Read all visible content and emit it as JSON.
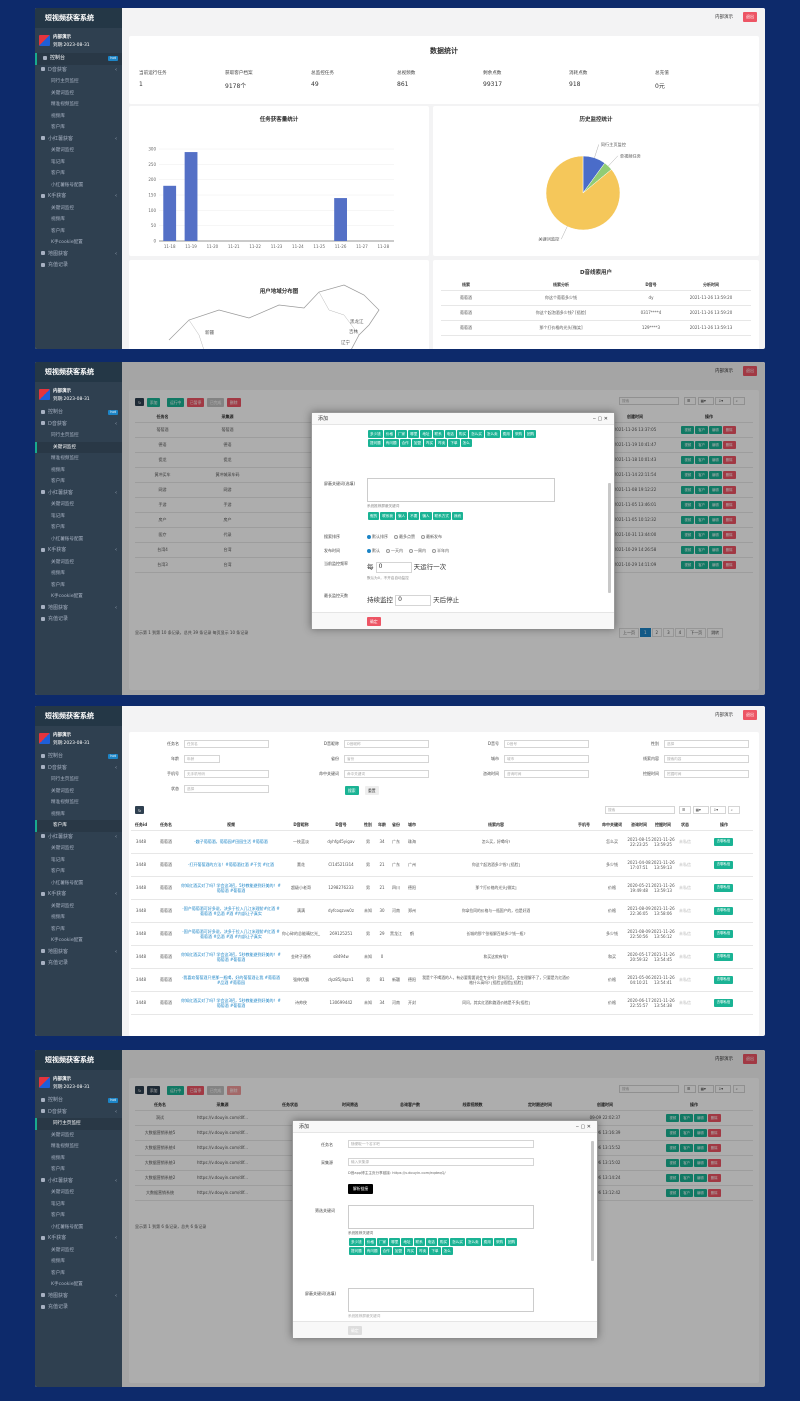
{
  "app": {
    "title": "短视频获客系统",
    "user": "内部演示",
    "expire": "到期:2023-08-31",
    "logout": "退出",
    "topuser": "内部演示"
  },
  "menu": [
    {
      "label": "控制台",
      "badge": "hot",
      "sub": false
    },
    {
      "label": "D音获客",
      "arrow": "‹",
      "sub": false
    },
    {
      "label": "同行主页监控",
      "sub": true
    },
    {
      "label": "关键词监控",
      "sub": true
    },
    {
      "label": "精准视频监控",
      "sub": true
    },
    {
      "label": "视频库",
      "sub": true
    },
    {
      "label": "客户库",
      "sub": true
    },
    {
      "label": "小红薯获客",
      "arrow": "‹",
      "sub": false
    },
    {
      "label": "关键词监控",
      "sub": true
    },
    {
      "label": "笔记库",
      "sub": true
    },
    {
      "label": "客户库",
      "sub": true
    },
    {
      "label": "小红薯账号配置",
      "sub": true
    },
    {
      "label": "K手获客",
      "arrow": "‹",
      "sub": false
    },
    {
      "label": "关键词监控",
      "sub": true
    },
    {
      "label": "视频库",
      "sub": true
    },
    {
      "label": "客户库",
      "sub": true
    },
    {
      "label": "K手cookie配置",
      "sub": true
    },
    {
      "label": "地图获客",
      "arrow": "‹",
      "sub": false
    },
    {
      "label": "充值记录",
      "sub": false
    }
  ],
  "p1": {
    "title": "数据统计",
    "stats": [
      {
        "label": "当前运行任务",
        "value": "1"
      },
      {
        "label": "获取客户档案",
        "value": "9178个"
      },
      {
        "label": "总监控任务",
        "value": "49"
      },
      {
        "label": "总视频数",
        "value": "861"
      },
      {
        "label": "剩余点数",
        "value": "99317"
      },
      {
        "label": "消耗点数",
        "value": "918"
      },
      {
        "label": "总充值",
        "value": "0元"
      }
    ],
    "bar_title": "任务获客量统计",
    "pie_title": "历史监控统计",
    "map_title": "用户地域分布图",
    "map_labels": [
      "黑龙江",
      "吉林",
      "辽宁",
      "新疆"
    ],
    "list_title": "D音线索用户",
    "list_headers": [
      "线索",
      "线索分析",
      "D音号",
      "分析时间"
    ],
    "list_rows": [
      {
        "a": "葡萄酒",
        "b": "你这个葡萄多少钱",
        "c": "dy",
        "d": "2021-11-26 13:59:20"
      },
      {
        "a": "葡萄酒",
        "b": "你这个起泡酒多少钱? [捂脸]",
        "c": "0317****4",
        "d": "2021-11-26 13:59:20"
      },
      {
        "a": "葡萄酒",
        "b": "那个打价格的光头[微笑]",
        "c": "129****3",
        "d": "2021-11-26 13:59:13"
      }
    ]
  },
  "chart_data": [
    {
      "type": "bar",
      "title": "任务获客量统计",
      "categories": [
        "11-18",
        "11-19",
        "11-20",
        "11-21",
        "11-22",
        "11-23",
        "11-24",
        "11-25",
        "11-26",
        "11-27",
        "11-28"
      ],
      "values": [
        180,
        290,
        0,
        0,
        0,
        0,
        0,
        0,
        140,
        0,
        0
      ],
      "ylim": [
        0,
        300
      ],
      "yticks": [
        0,
        50,
        100,
        150,
        200,
        250,
        300
      ]
    },
    {
      "type": "pie",
      "title": "历史监控统计",
      "series": [
        {
          "name": "同行主页监控",
          "value": 10
        },
        {
          "name": "单视频任务",
          "value": 4
        },
        {
          "name": "关键词监控",
          "value": 86
        }
      ],
      "colors": [
        "#4a6cc9",
        "#91cc75",
        "#f5c75a"
      ]
    }
  ],
  "p2": {
    "toolbar": [
      "添加",
      "运行中",
      "已暂停",
      "已完成",
      "删除"
    ],
    "search": "搜索",
    "headers": [
      "任务名",
      "采集源",
      "",
      "",
      "",
      "",
      "",
      "",
      "",
      "创建时间",
      "操作"
    ],
    "rows": [
      {
        "name": "葡萄酒",
        "src": "葡萄酒",
        "time": "2021-11-26 13:37:05"
      },
      {
        "name": "德语",
        "src": "德语",
        "time": "2021-11-19 10:41:47"
      },
      {
        "name": "瓷龙",
        "src": "瓷龙",
        "time": "2021-11-18 10:01:43"
      },
      {
        "name": "黄冲买车",
        "src": "黄冲城采车码",
        "time": "2021-11-14 22:11:54"
      },
      {
        "name": "网游",
        "src": "网游",
        "time": "2021-11-08 19:12:22"
      },
      {
        "name": "手游",
        "src": "手游",
        "time": "2021-11-05 13:46:01"
      },
      {
        "name": "房产",
        "src": "房产",
        "time": "2021-11-05 10:12:32"
      },
      {
        "name": "医疗",
        "src": "代录",
        "time": "2021-10-31 13:44:00"
      },
      {
        "name": "台湾4",
        "src": "台湾",
        "time": "2021-10-29 14:26:58"
      },
      {
        "name": "台湾3",
        "src": "台湾",
        "time": "2021-10-29 14:11:09"
      }
    ],
    "rowbtns": [
      "视频",
      "客户",
      "编辑",
      "删除"
    ],
    "footer": "显示第 1 到第 10 条记录，总共 39 条记录 每页显示 10 条记录",
    "pages": [
      "上一页",
      "1",
      "2",
      "3",
      "4",
      "下一页",
      "跳转"
    ],
    "dialog": {
      "title": "添加",
      "tags1": [
        "多少钱",
        "价格",
        "厂家",
        "哪里",
        "地址",
        "联系",
        "电话",
        "购买",
        "怎么买",
        "怎么卖",
        "费用",
        "采购",
        "团购",
        "提问题",
        "有问题",
        "合作",
        "加盟",
        "咋买",
        "咋卖",
        "下单",
        "怎么"
      ],
      "exclude_label": "屏蔽关键词(选填)",
      "exclude_hint": "系统推荐屏蔽关键词",
      "tags2": [
        "假的",
        "联系我",
        "骗人",
        "不要",
        "骗人",
        "联系方式",
        "我而"
      ],
      "order_label": "搜索排序",
      "order_opts": [
        "默认排序",
        "最多点赞",
        "最新发布"
      ],
      "time_label": "发布时间",
      "time_opts": [
        "默认",
        "一天内",
        "一周内",
        "半年内"
      ],
      "freq_label": "当前监控频率",
      "freq_text": "每",
      "freq_val": "0",
      "freq_unit": "天运行一次",
      "freq_note": "默认为0，不开启自动监控",
      "stop_label": "最长监控天数",
      "stop_text": "持续监控",
      "stop_val": "0",
      "stop_unit": "天后停止",
      "submit": "确定"
    }
  },
  "p3": {
    "filters": [
      {
        "label": "任务名",
        "ph": "任务名"
      },
      {
        "label": "D音昵称",
        "ph": "D音昵称"
      },
      {
        "label": "D音号",
        "ph": "D音号"
      },
      {
        "label": "性别",
        "ph": "选择"
      },
      {
        "label": "年龄",
        "ph": "年龄"
      },
      {
        "label": "省份",
        "ph": "省份"
      },
      {
        "label": "城市",
        "ph": "城市"
      },
      {
        "label": "线索内容",
        "ph": "搜索内容"
      },
      {
        "label": "手机号",
        "ph": "无手机号码"
      },
      {
        "label": "命中关键词",
        "ph": "命中关键词"
      },
      {
        "label": "咨询时间",
        "ph": "咨询时间"
      },
      {
        "label": "挖掘时间",
        "ph": "挖掘时间"
      },
      {
        "label": "状态",
        "ph": "选择"
      }
    ],
    "search_btn": "搜索",
    "reset_btn": "重置",
    "headers": [
      "任务id",
      "任务名",
      "视频",
      "D音昵称",
      "D音号",
      "性别",
      "年龄",
      "省份",
      "城市",
      "线索内容",
      "手机号",
      "命中关键词",
      "咨询时间",
      "挖掘时间",
      "状态",
      "操作"
    ],
    "rows": [
      {
        "id": "3448",
        "task": "葡萄酒",
        "video": "-趣子葡萄酒，葡萄园#田园生活 #葡萄酒",
        "nick": "一枝蓝淡",
        "dy": "dyhfg45yigav",
        "sex": "男",
        "age": "34",
        "prov": "广东",
        "city": "珠海",
        "clue": "怎么买，好喝吗?",
        "phone": "",
        "kw": "怎么买",
        "t1": "2021-08-15 22:23:25",
        "t2": "2021-11-26 13:59:25",
        "st": "未私信",
        "op": "去聊私信"
      },
      {
        "id": "3448",
        "task": "葡萄酒",
        "video": "-打开葡萄酒的方法！#葡萄酒红酒 #干货 #红酒",
        "nick": "薰花",
        "dy": "Cl14521l314",
        "sex": "男",
        "age": "21",
        "prov": "广东",
        "city": "广州",
        "clue": "你这个起泡酒多少钱? [捂脸]",
        "phone": "",
        "kw": "多少钱",
        "t1": "2021-04-08 17:07:51",
        "t2": "2021-11-26 13:59:13",
        "st": "未私信",
        "op": "去聊私信"
      },
      {
        "id": "3448",
        "task": "葡萄酒",
        "video": "你知红酒买对了吗? 学会这3招，5秒教能避到好美的！#葡萄酒 #葡萄酒",
        "nick": "超级小老哥",
        "dy": "1298276233",
        "sex": "男",
        "age": "21",
        "prov": "四川",
        "city": "德阳",
        "clue": "那个打价格的光头[微笑]",
        "phone": "",
        "kw": "价格",
        "t1": "2020-05-21 19:49:48",
        "t2": "2021-11-26 13:59:13",
        "st": "未私信",
        "op": "去聊私信"
      },
      {
        "id": "3448",
        "task": "葡萄酒",
        "video": "-国产葡萄酒可好多说，决多于拉入几江米理阶#红酒 #葡萄酒 #品酒 #酒 #内部让子真实",
        "nick": "满满",
        "dy": "dyfcoqzvw0z",
        "sex": "未知",
        "age": "30",
        "prov": "河南",
        "city": "郑州",
        "clue": "你拿拉同的价格与一瓶国产的，也是好酒",
        "phone": "",
        "kw": "价格",
        "t1": "2021-08-09 22:36:05",
        "t2": "2021-11-26 13:58:06",
        "st": "未私信",
        "op": "去聊私信"
      },
      {
        "id": "3448",
        "task": "葡萄酒",
        "video": "-国产葡萄酒可好多说，决多于拉入几江米理阶#红酒 #葡萄酒 #品酒 #酒 #内部让子真实",
        "nick": "你心碎的总能晴忆光_",
        "dy": "269125251",
        "sex": "男",
        "age": "29",
        "prov": "黑龙江",
        "city": "鹤",
        "clue": "长城的那个张裕解百纳多少钱一瓶?",
        "phone": "",
        "kw": "多少钱",
        "t1": "2021-08-09 22:50:56",
        "t2": "2021-11-26 13:56:12",
        "st": "未私信",
        "op": "去聊私信"
      },
      {
        "id": "3448",
        "task": "葡萄酒",
        "video": "你知红酒买对了吗? 学会这3招，5秒教能避到好美的！#葡萄酒 #葡萄酒",
        "nick": "金砖子通杀",
        "dy": "s8494w",
        "sex": "未知",
        "age": "0",
        "prov": "",
        "city": "",
        "clue": "和买这款有啥?",
        "phone": "",
        "kw": "和买",
        "t1": "2020-05-17 20:59:32",
        "t2": "2021-11-26 13:54:45",
        "st": "未私信",
        "op": "去聊私信"
      },
      {
        "id": "3448",
        "task": "葡萄酒",
        "video": "-我喜欢葡萄酒只把那一瓶喝，好的葡萄酒让我 #葡萄酒 #品酒 #葡萄园",
        "nick": "强伸伏霸",
        "dy": "dyz85j4qzn1",
        "sex": "男",
        "age": "81",
        "prov": "新疆",
        "city": "德阳",
        "clue": "我是个不喝酒的人，有必要需要说会专业吗? 您科而且，实在理解不了，只要是为红酒价格什么高吗? [捂脸][捂脸][捂脸]",
        "phone": "",
        "kw": "价格",
        "t1": "2021-05-06 04:10:21",
        "t2": "2021-11-26 13:54:41",
        "st": "未私信",
        "op": "去聊私信"
      },
      {
        "id": "3448",
        "task": "葡萄酒",
        "video": "你知红酒买对了吗? 学会这3招，5秒教能避到好美的！#葡萄酒 #葡萄酒",
        "nick": "诗帅侠",
        "dy": "130699442",
        "sex": "未知",
        "age": "34",
        "prov": "河南",
        "city": "开封",
        "clue": "同问，其实红酒和路酒价格是不多[捂脸]",
        "phone": "",
        "kw": "价格",
        "t1": "2020-06-17 22:55:57",
        "t2": "2021-11-26 13:54:38",
        "st": "未私信",
        "op": "去聊私信"
      }
    ]
  },
  "p4": {
    "toolbar": [
      "添加",
      "运行中",
      "已暂停",
      "已完成",
      "删除"
    ],
    "search": "搜索",
    "headers": [
      "任务名",
      "采集源",
      "任务状态",
      "时间筛选",
      "总询客户数",
      "线索视频数",
      "定时跟进时间",
      "创建时间",
      "操作"
    ],
    "rows": [
      {
        "name": "洞试",
        "src": "https://v.douyin.com/dlf...",
        "time": "09-09 22:02:37"
      },
      {
        "name": "大数据营销系统5",
        "src": "https://v.douyin.com/dlf...",
        "time": "09-06 13:16:39"
      },
      {
        "name": "大数据营销系统4",
        "src": "https://v.douyin.com/dlf...",
        "time": "09-06 13:15:52"
      },
      {
        "name": "大数据营销系统3",
        "src": "https://v.douyin.com/dlf...",
        "time": "09-06 13:15:02"
      },
      {
        "name": "大数据营销系统2",
        "src": "https://v.douyin.com/dlf...",
        "time": "09-06 13:14:24"
      },
      {
        "name": "大数据营销系统",
        "src": "https://v.douyin.com/dlf...",
        "time": "09-06 13:12:42"
      }
    ],
    "rowbtns": [
      "视频",
      "客户",
      "编辑",
      "删除"
    ],
    "footer": "显示第 1 到第 6 条记录，总共 6 条记录",
    "dialog": {
      "title": "添加",
      "name_label": "任务名",
      "name_ph": "随便取一个名字吧",
      "src_label": "采集源",
      "src_ph": "输入采集源",
      "src_hint": "D音app博主主页分享链接: https://v.douyin.com/eqdeqQ/",
      "parse_btn": "解析链接",
      "kw_label": "筛选关键词",
      "kw_hint": "系统推荐关键词",
      "tags": [
        "多少钱",
        "价格",
        "厂家",
        "哪里",
        "地址",
        "联系",
        "电话",
        "购买",
        "怎么买",
        "怎么卖",
        "费用",
        "采购",
        "团购",
        "提问题",
        "有问题",
        "合作",
        "加盟",
        "咋买",
        "咋卖",
        "下单",
        "怎么"
      ],
      "exclude_label": "屏蔽关键词(选填)",
      "exclude_hint": "系统推荐屏蔽关键词",
      "submit": "确定"
    }
  }
}
